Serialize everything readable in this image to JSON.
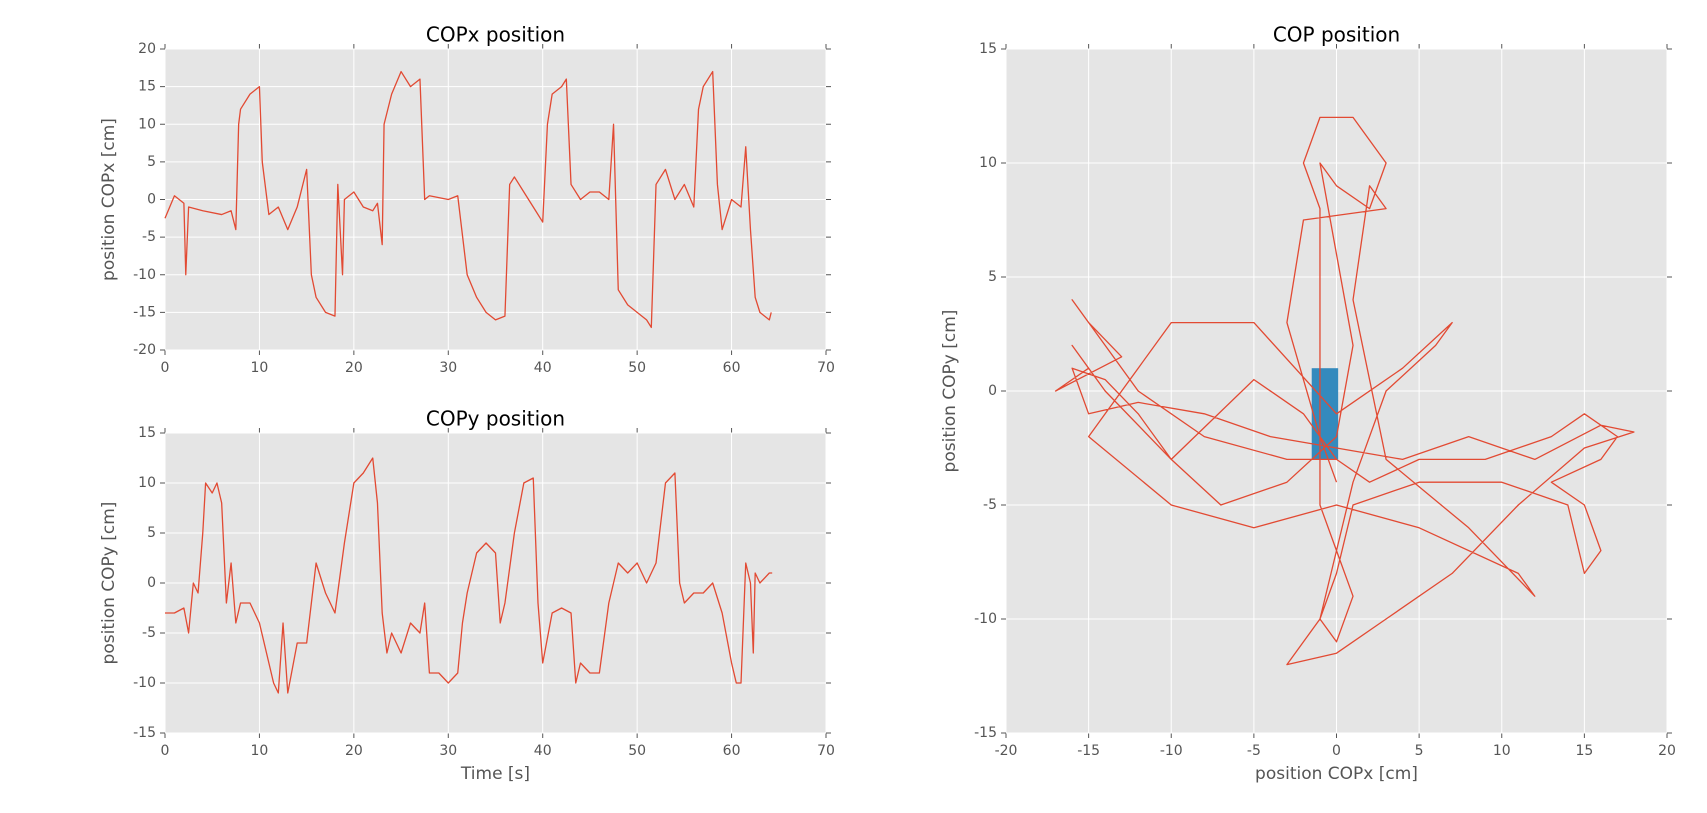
{
  "chart_data": [
    {
      "type": "line",
      "title": "COPx position",
      "ylabel": "position COPx [cm]",
      "xlim": [
        0,
        70
      ],
      "xticks": [
        0,
        10,
        20,
        30,
        40,
        50,
        60,
        70
      ],
      "ylim": [
        -20,
        20
      ],
      "yticks": [
        -20,
        -15,
        -10,
        -5,
        0,
        5,
        10,
        15,
        20
      ],
      "grid": true,
      "x": [
        0,
        1,
        2,
        2.2,
        2.5,
        4,
        6,
        7,
        7.5,
        7.8,
        8,
        9,
        10,
        10.3,
        11,
        12,
        13,
        14,
        15,
        15.5,
        16,
        17,
        18,
        18.3,
        18.8,
        19,
        20,
        21,
        22,
        22.5,
        23,
        23.2,
        24,
        25,
        26,
        27,
        27.5,
        28,
        30,
        31,
        32,
        33,
        34,
        35,
        36,
        36.5,
        37,
        38,
        39,
        40,
        40.5,
        41,
        42,
        42.5,
        43,
        44,
        45,
        46,
        47,
        47.5,
        48,
        49,
        50,
        51,
        51.5,
        52,
        53,
        54,
        55,
        56,
        56.5,
        57,
        58,
        58.5,
        59,
        60,
        61,
        61.5,
        62,
        62.5,
        63,
        64,
        64.2
      ],
      "series": [
        {
          "color": "#e24a33",
          "values": [
            -2.5,
            0.5,
            -0.5,
            -10,
            -1,
            -1.5,
            -2,
            -1.5,
            -4,
            10,
            12,
            14,
            15,
            5,
            -2,
            -1,
            -4,
            -1,
            4,
            -10,
            -13,
            -15,
            -15.5,
            2,
            -10,
            0,
            1,
            -1,
            -1.5,
            -0.5,
            -6,
            10,
            14,
            17,
            15,
            16,
            0,
            0.5,
            0,
            0.5,
            -10,
            -13,
            -15,
            -16,
            -15.5,
            2,
            3,
            1,
            -1,
            -3,
            10,
            14,
            15,
            16,
            2,
            0,
            1,
            1,
            0,
            10,
            -12,
            -14,
            -15,
            -16,
            -17,
            2,
            4,
            0,
            2,
            -1,
            12,
            15,
            17,
            2,
            -4,
            0,
            -1,
            7,
            -4,
            -13,
            -15,
            -16,
            -15
          ]
        }
      ]
    },
    {
      "type": "line",
      "title": "COPy position",
      "xlabel": "Time [s]",
      "ylabel": "position COPy [cm]",
      "xlim": [
        0,
        70
      ],
      "xticks": [
        0,
        10,
        20,
        30,
        40,
        50,
        60,
        70
      ],
      "ylim": [
        -15,
        15
      ],
      "yticks": [
        -15,
        -10,
        -5,
        0,
        5,
        10,
        15
      ],
      "grid": true,
      "x": [
        0,
        1,
        2,
        2.5,
        3,
        3.5,
        4,
        4.3,
        5,
        5.5,
        6,
        6.5,
        7,
        7.5,
        8,
        9,
        10,
        11,
        11.5,
        12,
        12.5,
        13,
        14,
        15,
        16,
        17,
        18,
        19,
        20,
        21,
        22,
        22.5,
        23,
        23.5,
        24,
        25,
        26,
        27,
        27.5,
        28,
        29,
        30,
        31,
        31.5,
        32,
        33,
        34,
        35,
        35.5,
        36,
        37,
        38,
        39,
        39.5,
        40,
        41,
        42,
        43,
        43.5,
        44,
        45,
        46,
        47,
        48,
        49,
        50,
        51,
        52,
        53,
        54,
        54.5,
        55,
        56,
        57,
        58,
        59,
        60,
        60.5,
        61,
        61.5,
        62,
        62.3,
        62.5,
        63,
        64,
        64.3
      ],
      "series": [
        {
          "color": "#e24a33",
          "values": [
            -3,
            -3,
            -2.5,
            -5,
            0,
            -1,
            5,
            10,
            9,
            10,
            8,
            -2,
            2,
            -4,
            -2,
            -2,
            -4,
            -8,
            -10,
            -11,
            -4,
            -11,
            -6,
            -6,
            2,
            -1,
            -3,
            4,
            10,
            11,
            12.5,
            8,
            -3,
            -7,
            -5,
            -7,
            -4,
            -5,
            -2,
            -9,
            -9,
            -10,
            -9,
            -4,
            -1,
            3,
            4,
            3,
            -4,
            -2,
            5,
            10,
            10.5,
            -2,
            -8,
            -3,
            -2.5,
            -3,
            -10,
            -8,
            -9,
            -9,
            -2,
            2,
            1,
            2,
            0,
            2,
            10,
            11,
            0,
            -2,
            -1,
            -1,
            0,
            -3,
            -8,
            -10,
            -10,
            2,
            0,
            -7,
            1,
            0,
            1,
            1
          ]
        }
      ]
    },
    {
      "type": "line",
      "title": "COP position",
      "xlabel": "position COPx [cm]",
      "ylabel": "position COPy [cm]",
      "xlim": [
        -20,
        20
      ],
      "xticks": [
        -20,
        -15,
        -10,
        -5,
        0,
        5,
        10,
        15,
        20
      ],
      "ylim": [
        -15,
        15
      ],
      "yticks": [
        -15,
        -10,
        -5,
        0,
        5,
        10,
        15
      ],
      "grid": true,
      "x": [
        0,
        -2,
        -5,
        -10,
        -14,
        -16,
        -15,
        -17,
        -13,
        -15,
        -16,
        -14,
        -12,
        -8,
        -3,
        0,
        2,
        5,
        9,
        13,
        15,
        17,
        16,
        13,
        15,
        16,
        15,
        14,
        10,
        5,
        1,
        0,
        -1,
        0,
        1,
        0,
        -1,
        -1,
        -1,
        -1,
        -2,
        -1,
        1,
        3,
        2,
        0,
        -1,
        0,
        1,
        0,
        -3,
        -7,
        -10,
        -12,
        -14,
        -16,
        -15,
        -12,
        -8,
        -4,
        0,
        4,
        8,
        12,
        16,
        18,
        15,
        11,
        7,
        3,
        0,
        -3,
        -1,
        0,
        1,
        3,
        6,
        7,
        4,
        0,
        -5,
        -10,
        -12,
        -14,
        -15,
        -10,
        -5,
        0,
        5,
        11,
        12,
        8,
        3,
        1,
        2,
        3,
        -2,
        -3,
        -1,
        0
      ],
      "series": [
        {
          "color": "#e24a33",
          "values": [
            -3,
            -1,
            0.5,
            -3,
            0,
            2,
            1,
            0,
            1.5,
            3,
            4,
            2,
            0,
            -2,
            -3,
            -3,
            -4,
            -3,
            -3,
            -2,
            -1,
            -2,
            -3,
            -4,
            -5,
            -7,
            -8,
            -5,
            -4,
            -4,
            -5,
            -8,
            -10,
            -11,
            -9,
            -7,
            -5,
            -2,
            3,
            8,
            10,
            12,
            12,
            10,
            8,
            9,
            10,
            6,
            2,
            -2,
            -4,
            -5,
            -3,
            -1,
            0.5,
            1,
            -1,
            -0.5,
            -1,
            -2,
            -2.5,
            -3,
            -2,
            -3,
            -1.5,
            -1.8,
            -2.5,
            -5,
            -8,
            -10,
            -11.5,
            -12,
            -10,
            -7,
            -4,
            0,
            2,
            3,
            1,
            -1,
            3,
            3,
            1,
            -1,
            -2,
            -5,
            -6,
            -5,
            -6,
            -8,
            -9,
            -6,
            -3,
            4,
            9,
            8,
            7.5,
            3,
            -2,
            -4
          ]
        }
      ],
      "rectangle": {
        "x": [
          -1.5,
          0.1
        ],
        "y": [
          -3,
          1
        ],
        "color": "#348abd"
      }
    }
  ]
}
